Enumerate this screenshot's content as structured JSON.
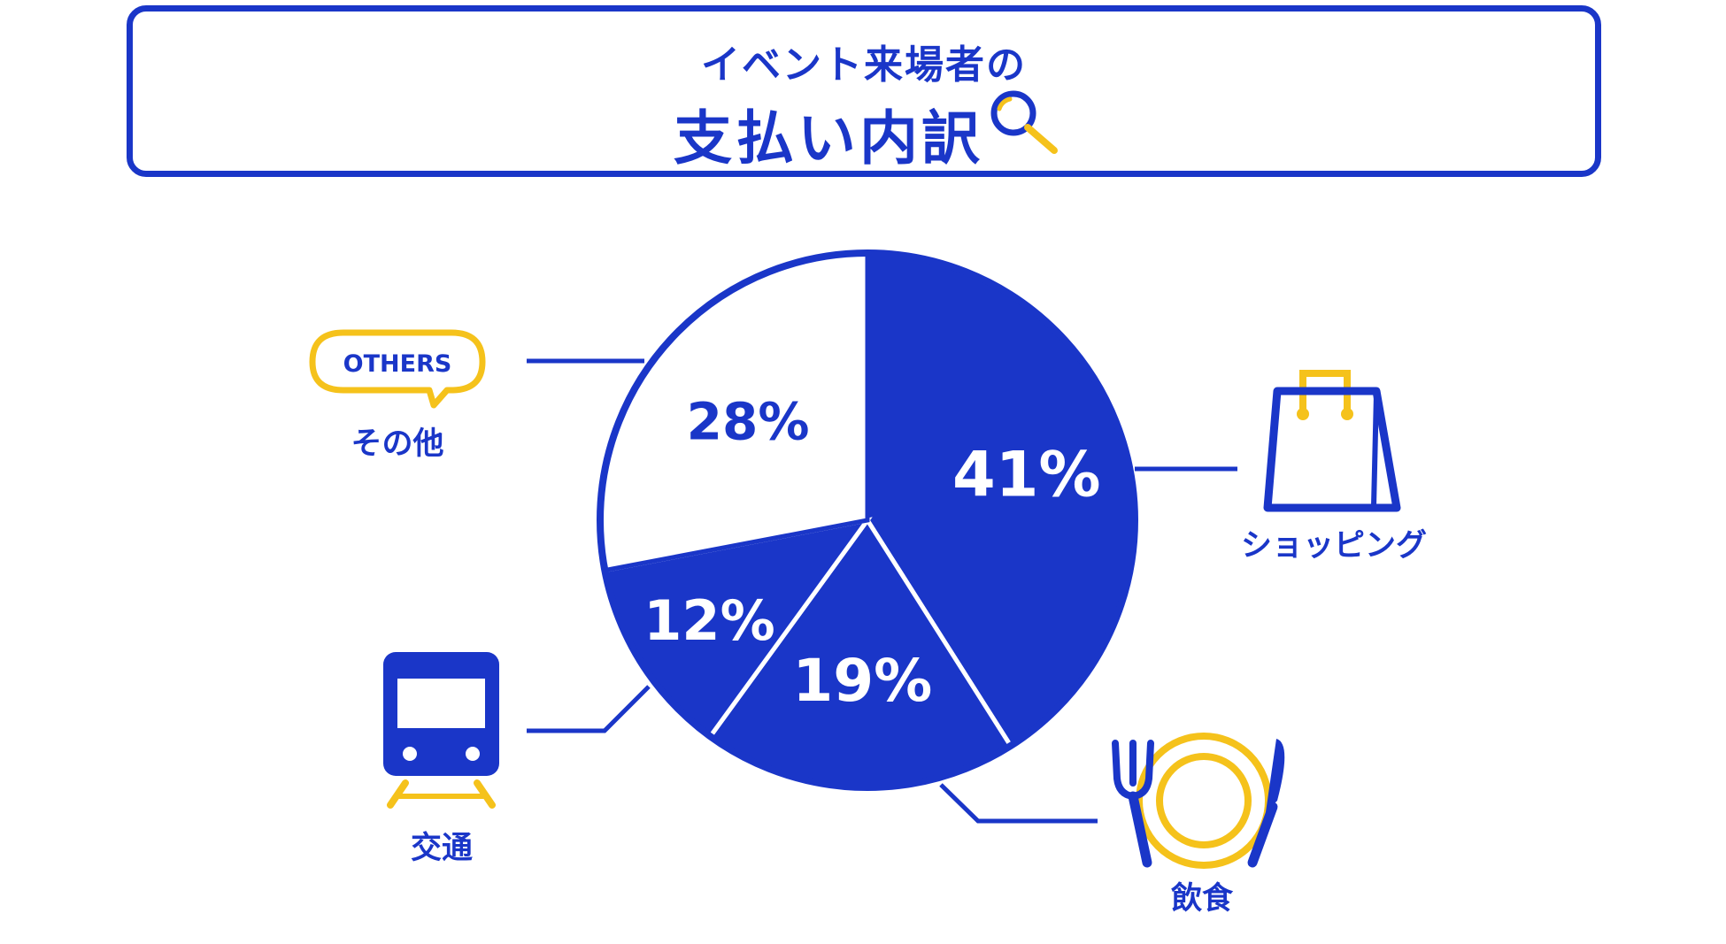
{
  "title": {
    "line1": "イベント来場者の",
    "line2": "支払い内訳"
  },
  "colors": {
    "primary": "#1a36c8",
    "accent": "#f5c21b",
    "background": "#ffffff"
  },
  "chart_data": {
    "type": "pie",
    "title": "イベント来場者の 支払い内訳",
    "slices": [
      {
        "label": "ショッピング",
        "value": 41,
        "display": "41%",
        "filled": true,
        "icon": "shopping-bag-icon"
      },
      {
        "label": "飲食",
        "value": 19,
        "display": "19%",
        "filled": true,
        "icon": "plate-fork-knife-icon"
      },
      {
        "label": "交通",
        "value": 12,
        "display": "12%",
        "filled": true,
        "icon": "train-icon"
      },
      {
        "label": "その他",
        "value": 28,
        "display": "28%",
        "filled": false,
        "icon": "others-speech-bubble-icon"
      }
    ],
    "start": "12 o'clock",
    "direction": "clockwise",
    "others_badge": "OTHERS"
  }
}
